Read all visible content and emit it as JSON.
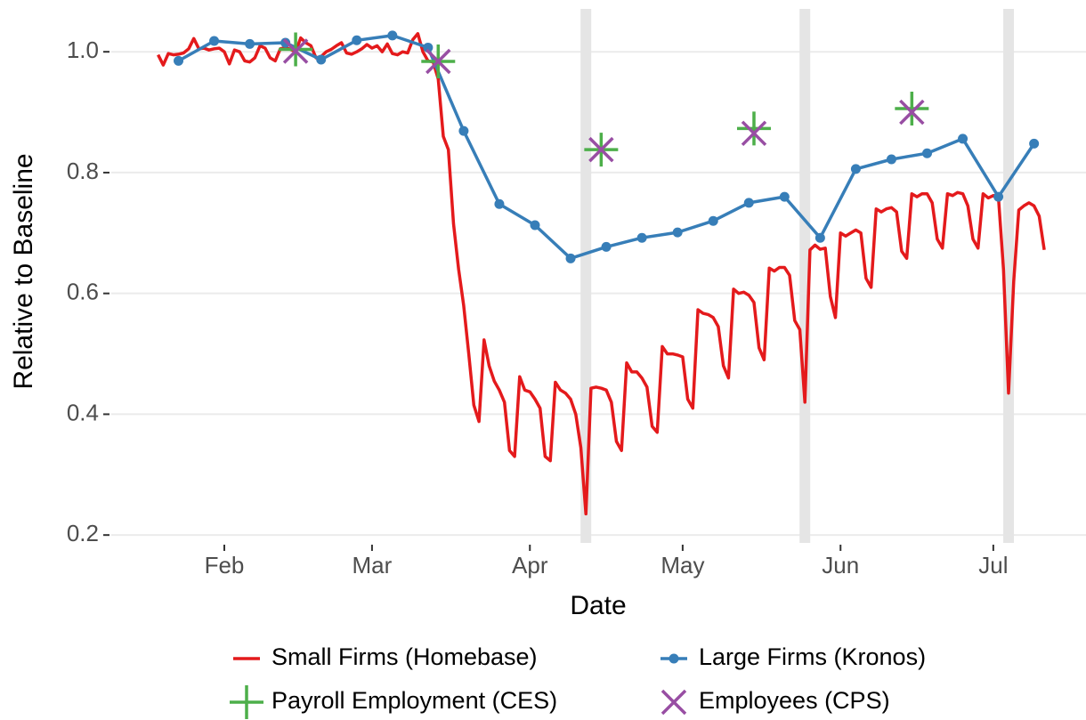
{
  "chart_data": {
    "type": "line",
    "xlabel": "Date",
    "ylabel": "Relative to Baseline",
    "xlim": [
      9.8,
      201.2
    ],
    "ylim": [
      0.187,
      1.071
    ],
    "xticks": [
      {
        "value": 32,
        "label": "Feb"
      },
      {
        "value": 61,
        "label": "Mar"
      },
      {
        "value": 92,
        "label": "Apr"
      },
      {
        "value": 122,
        "label": "May"
      },
      {
        "value": 153,
        "label": "Jun"
      },
      {
        "value": 183,
        "label": "Jul"
      }
    ],
    "yticks": [
      0.2,
      0.4,
      0.6,
      0.8,
      {
        "value": 1,
        "label": "1.0"
      }
    ],
    "grid": true,
    "shaded_x": [
      103,
      146,
      186
    ],
    "series": [
      {
        "name": "Small Firms (Homebase)",
        "color": "#e41a1c",
        "line": true,
        "marker": "none",
        "x": [
          19,
          20,
          21,
          22,
          23,
          24,
          25,
          26,
          27,
          28,
          29,
          30,
          31,
          32,
          33,
          34,
          35,
          36,
          37,
          38,
          39,
          40,
          41,
          42,
          43,
          44,
          45,
          46,
          47,
          48,
          49,
          50,
          51,
          52,
          53,
          54,
          55,
          56,
          57,
          58,
          59,
          60,
          61,
          62,
          63,
          64,
          65,
          66,
          67,
          68,
          69,
          70,
          71,
          72,
          73,
          74,
          75,
          76,
          77,
          78,
          79,
          80,
          81,
          82,
          83,
          84,
          85,
          86,
          87,
          88,
          89,
          90,
          91,
          92,
          93,
          94,
          95,
          96,
          97,
          98,
          99,
          100,
          101,
          102,
          103,
          104,
          105,
          106,
          107,
          108,
          109,
          110,
          111,
          112,
          113,
          114,
          115,
          116,
          117,
          118,
          119,
          120,
          121,
          122,
          123,
          124,
          125,
          126,
          127,
          128,
          129,
          130,
          131,
          132,
          133,
          134,
          135,
          136,
          137,
          138,
          139,
          140,
          141,
          142,
          143,
          144,
          145,
          146,
          147,
          148,
          149,
          150,
          151,
          152,
          153,
          154,
          155,
          156,
          157,
          158,
          159,
          160,
          161,
          162,
          163,
          164,
          165,
          166,
          167,
          168,
          169,
          170,
          171,
          172,
          173,
          174,
          175,
          176,
          177,
          178,
          179,
          180,
          181,
          182,
          183,
          184,
          185,
          186,
          187,
          188,
          189,
          190,
          191,
          192,
          193
        ],
        "values": [
          0.995,
          0.978,
          0.997,
          0.995,
          0.996,
          0.998,
          1.005,
          1.022,
          1.005,
          1.006,
          1.003,
          1.005,
          1.006,
          1.0,
          0.98,
          1.003,
          1.0,
          0.985,
          0.983,
          0.99,
          1.01,
          1.006,
          0.99,
          0.985,
          1.005,
          1.007,
          1.004,
          1.0,
          1.023,
          1.015,
          1.01,
          0.99,
          0.992,
          1.0,
          1.004,
          1.01,
          1.015,
          0.998,
          0.996,
          1.0,
          1.005,
          1.012,
          1.006,
          1.01,
          1.0,
          1.013,
          0.997,
          0.995,
          1.0,
          0.998,
          1.02,
          1.03,
          1.0,
          0.985,
          0.983,
          0.955,
          0.86,
          0.838,
          0.715,
          0.64,
          0.58,
          0.5,
          0.415,
          0.388,
          0.523,
          0.48,
          0.455,
          0.44,
          0.42,
          0.34,
          0.33,
          0.462,
          0.44,
          0.437,
          0.425,
          0.41,
          0.33,
          0.323,
          0.453,
          0.44,
          0.435,
          0.425,
          0.4,
          0.345,
          0.235,
          0.443,
          0.445,
          0.443,
          0.44,
          0.42,
          0.355,
          0.34,
          0.485,
          0.47,
          0.47,
          0.46,
          0.445,
          0.38,
          0.37,
          0.512,
          0.5,
          0.5,
          0.498,
          0.495,
          0.425,
          0.41,
          0.573,
          0.567,
          0.565,
          0.56,
          0.545,
          0.48,
          0.46,
          0.607,
          0.6,
          0.602,
          0.597,
          0.585,
          0.51,
          0.49,
          0.642,
          0.637,
          0.643,
          0.643,
          0.63,
          0.555,
          0.54,
          0.42,
          0.672,
          0.68,
          0.673,
          0.675,
          0.595,
          0.56,
          0.7,
          0.695,
          0.7,
          0.705,
          0.7,
          0.625,
          0.61,
          0.74,
          0.735,
          0.74,
          0.742,
          0.735,
          0.67,
          0.658,
          0.765,
          0.76,
          0.765,
          0.765,
          0.75,
          0.69,
          0.675,
          0.765,
          0.762,
          0.767,
          0.765,
          0.745,
          0.69,
          0.675,
          0.765,
          0.758,
          0.762,
          0.76,
          0.64,
          0.435,
          0.62,
          0.738,
          0.745,
          0.75,
          0.745,
          0.728,
          0.672
        ]
      },
      {
        "name": "Large Firms (Kronos)",
        "color": "#377eb8",
        "line": true,
        "marker": "point",
        "x": [
          23,
          30,
          37,
          44,
          51,
          58,
          65,
          72,
          79,
          86,
          93,
          100,
          107,
          114,
          121,
          128,
          135,
          142,
          149,
          156,
          163,
          170,
          177,
          184,
          191
        ],
        "values": [
          0.985,
          1.018,
          1.013,
          1.015,
          0.987,
          1.019,
          1.027,
          1.007,
          0.869,
          0.748,
          0.713,
          0.658,
          0.677,
          0.692,
          0.701,
          0.72,
          0.75,
          0.76,
          0.692,
          0.806,
          0.822,
          0.832,
          0.856,
          0.76,
          0.848
        ]
      },
      {
        "name": "Payroll Employment (CES)",
        "color": "#4daf4a",
        "line": false,
        "marker": "plus",
        "x": [
          46,
          74,
          106,
          136,
          167
        ],
        "values": [
          1.004,
          0.984,
          0.838,
          0.873,
          0.906
        ]
      },
      {
        "name": "Employees (CPS)",
        "color": "#984ea3",
        "line": false,
        "marker": "cross",
        "x": [
          46,
          74,
          106,
          136,
          167
        ],
        "values": [
          1.001,
          0.984,
          0.838,
          0.865,
          0.9
        ]
      }
    ]
  }
}
